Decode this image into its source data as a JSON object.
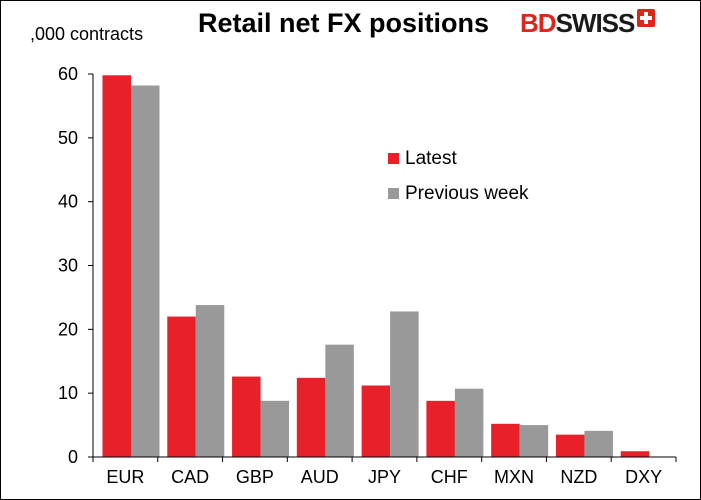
{
  "header": {
    "unit_label": ",000 contracts",
    "title": "Retail net FX positions",
    "logo_bd": "BD",
    "logo_swiss": "SWISS"
  },
  "colors": {
    "latest": "#e8202a",
    "previous": "#999999",
    "axis": "#000000"
  },
  "chart_data": {
    "type": "bar",
    "title": "Retail net FX positions",
    "ylabel": ",000 contracts",
    "xlabel": "",
    "categories": [
      "EUR",
      "CAD",
      "GBP",
      "AUD",
      "JPY",
      "CHF",
      "MXN",
      "NZD",
      "DXY"
    ],
    "series": [
      {
        "name": "Latest",
        "values": [
          59.8,
          22.0,
          12.6,
          12.4,
          11.2,
          8.8,
          5.2,
          3.5,
          0.9
        ]
      },
      {
        "name": "Previous week",
        "values": [
          58.2,
          23.8,
          8.8,
          17.6,
          22.8,
          10.7,
          5.0,
          4.1,
          0.0
        ]
      }
    ],
    "ylim": [
      0,
      60
    ],
    "yticks": [
      0,
      10,
      20,
      30,
      40,
      50,
      60
    ],
    "grid": false,
    "legend": "center-right"
  }
}
